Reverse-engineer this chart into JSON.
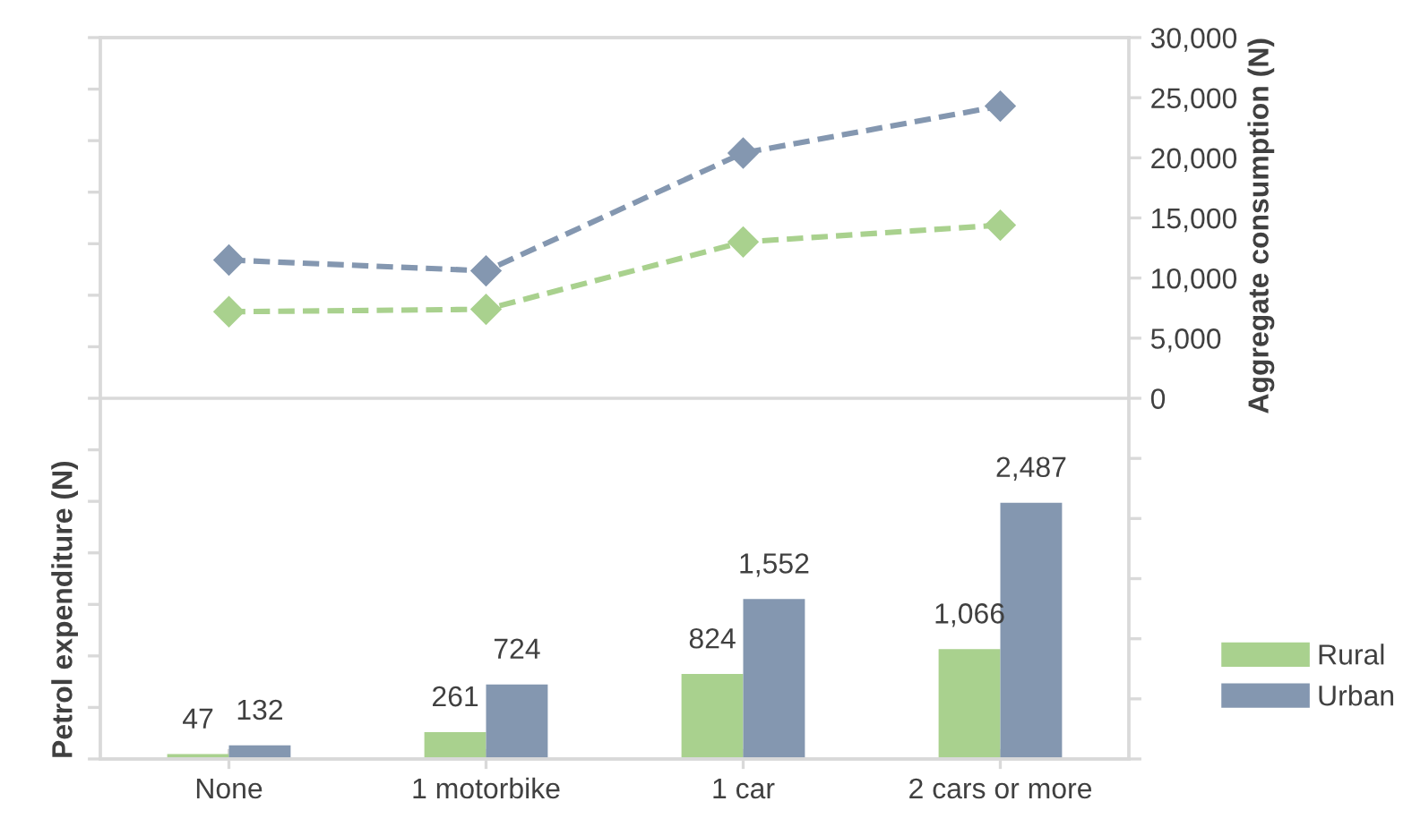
{
  "chart_data": {
    "type": "bar",
    "ylabel": "Petrol expenditure (N)",
    "y2label": "Aggregate consumption (N)",
    "categories": [
      "None",
      "1 motorbike",
      "1 car",
      "2 cars or more"
    ],
    "series": [
      {
        "name": "Rural",
        "color": "#a9d18e",
        "values": [
          47,
          261,
          824,
          1066
        ],
        "value_labels": [
          "47",
          "261",
          "824",
          "1,066"
        ]
      },
      {
        "name": "Urban",
        "color": "#8497b0",
        "values": [
          132,
          724,
          1552,
          2487
        ],
        "value_labels": [
          "132",
          "724",
          "1,552",
          "2,487"
        ]
      },
      {
        "type": "line",
        "axis": "y2",
        "color": "#a9d18e",
        "values": [
          7200,
          7400,
          13000,
          14400
        ],
        "marker": "diamond",
        "line_style": "dashed"
      },
      {
        "type": "line",
        "axis": "y2",
        "color": "#8497b0",
        "values": [
          11500,
          10600,
          20400,
          24300
        ],
        "marker": "diamond",
        "line_style": "dashed"
      }
    ],
    "ylim": [
      0,
      7000
    ],
    "yticks": [
      {
        "value": 0,
        "label": null
      },
      {
        "value": 500,
        "label": null
      },
      {
        "value": 1000,
        "label": null
      },
      {
        "value": 1500,
        "label": null
      },
      {
        "value": 2000,
        "label": null
      },
      {
        "value": 2500,
        "label": null
      },
      {
        "value": 3000,
        "label": null
      },
      {
        "value": 3500,
        "label": null
      },
      {
        "value": 4000,
        "label": null
      },
      {
        "value": 4500,
        "label": null
      },
      {
        "value": 5000,
        "label": null
      },
      {
        "value": 5500,
        "label": null
      },
      {
        "value": 6000,
        "label": null
      },
      {
        "value": 6500,
        "label": null
      },
      {
        "value": 7000,
        "label": null
      }
    ],
    "y2lim": [
      -30000,
      30000
    ],
    "y2ticks": [
      {
        "value": -30000,
        "label": null
      },
      {
        "value": -25000,
        "label": null
      },
      {
        "value": -20000,
        "label": null
      },
      {
        "value": -15000,
        "label": null
      },
      {
        "value": -10000,
        "label": null
      },
      {
        "value": -5000,
        "label": null
      },
      {
        "value": 0,
        "label": "0"
      },
      {
        "value": 5000,
        "label": "5,000"
      },
      {
        "value": 10000,
        "label": "10,000"
      },
      {
        "value": 15000,
        "label": "15,000"
      },
      {
        "value": 20000,
        "label": "20,000"
      },
      {
        "value": 25000,
        "label": "25,000"
      },
      {
        "value": 30000,
        "label": "30,000"
      }
    ],
    "ref_lines": [
      {
        "axis": "y2",
        "value": 0,
        "color": "#d9d9d9"
      }
    ],
    "tick_labels": [
      "x",
      "y2"
    ],
    "legend": "right",
    "grid": false
  }
}
